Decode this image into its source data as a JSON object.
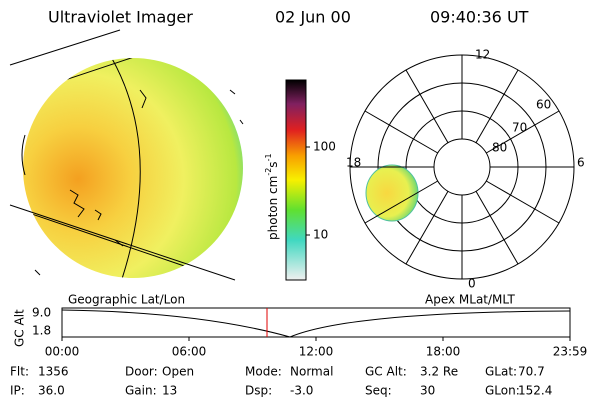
{
  "header": {
    "title": "Ultraviolet Imager",
    "date": "02 Jun 00",
    "time": "09:40:36 UT"
  },
  "colorbar": {
    "unit": "photon cm",
    "exp1": "-2",
    "unit2": "s",
    "exp2": "-1",
    "ticks": [
      "100",
      "10"
    ]
  },
  "panels": {
    "left": "Geographic Lat/Lon",
    "right": "Apex MLat/MLT"
  },
  "polar": {
    "mlt": [
      "12",
      "6",
      "0",
      "18"
    ],
    "mlat": [
      "60",
      "70",
      "80"
    ]
  },
  "altitude": {
    "ylabel": "GC Alt",
    "yticks": [
      "9.0",
      "1.8"
    ],
    "xticks": [
      "00:00",
      "06:00",
      "12:00",
      "18:00",
      "23:59"
    ]
  },
  "info": [
    [
      [
        "Flt:",
        "1356"
      ],
      [
        "Door:",
        "Open"
      ],
      [
        "Mode:",
        "Normal"
      ],
      [
        "GC Alt:",
        "3.2 Re"
      ],
      [
        "GLat:",
        "70.7"
      ]
    ],
    [
      [
        "IP:",
        "36.0"
      ],
      [
        "Gain:",
        "13"
      ],
      [
        "Dsp:",
        "-3.0"
      ],
      [
        "Seq:",
        "30"
      ],
      [
        "GLon:",
        "152.4"
      ]
    ]
  ]
}
